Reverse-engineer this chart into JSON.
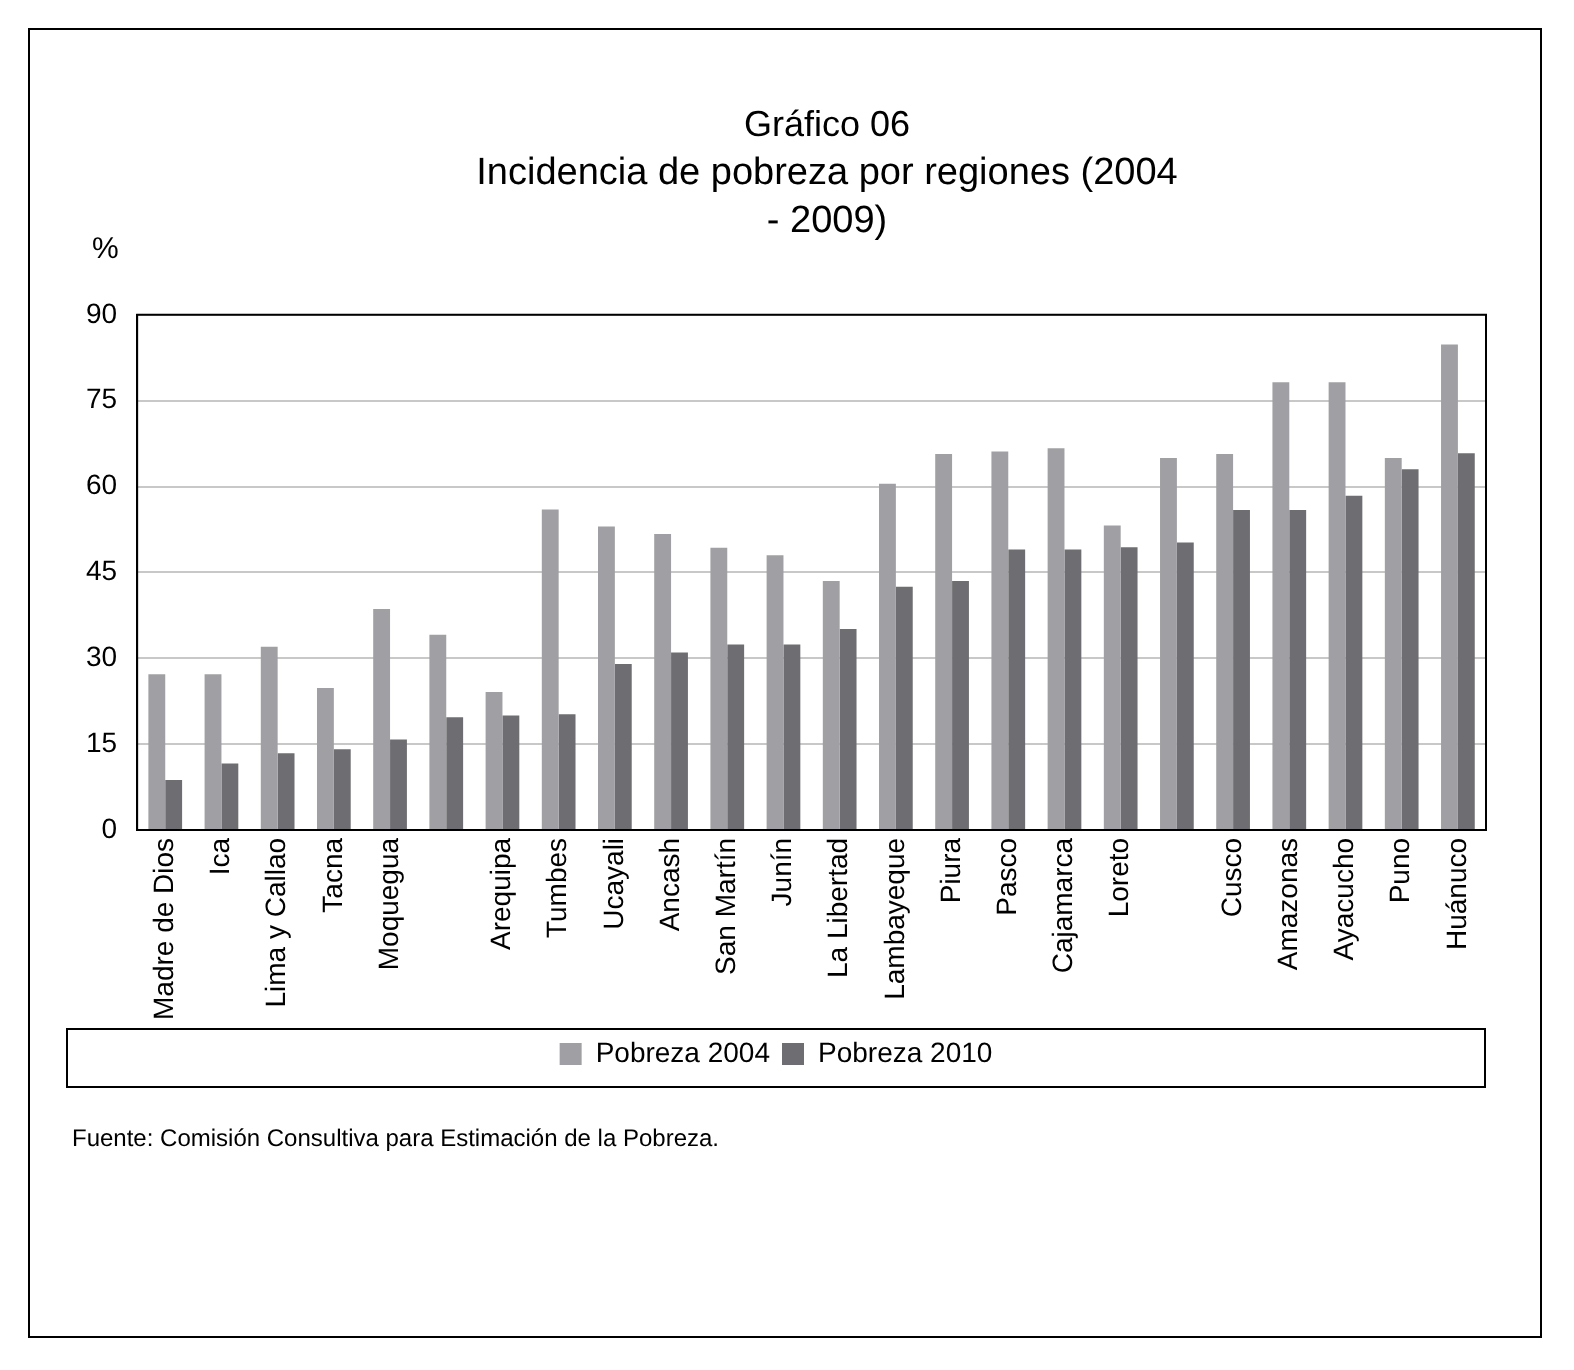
{
  "chart_data": {
    "type": "bar",
    "title": "Gráfico 06",
    "subtitle": "Incidencia de pobreza por regiones (2004 - 2009)",
    "ylabel": "%",
    "annotations": [
      "Fuente: Comisión Consultiva para Estimación de la Pobreza."
    ],
    "categories": [
      "Madre de Dios",
      "Ica",
      "Lima y Callao",
      "Tacna",
      "Moquegua",
      null,
      "Arequipa",
      "Tumbes",
      "Ucayali",
      "Ancash",
      "San Martín",
      "Junín",
      "La Libertad",
      "Lambayeque",
      "Piura",
      "Pasco",
      "Cajamarca",
      "Loreto",
      null,
      "Cusco",
      "Amazonas",
      "Ayacucho",
      "Puno",
      "Huánuco"
    ],
    "series": [
      {
        "name": "Pobreza 2004",
        "color": "#a0a0a4",
        "values": [
          27.2,
          27.2,
          32.0,
          24.8,
          38.6,
          34.1,
          24.1,
          56.0,
          53.0,
          51.7,
          49.3,
          48.0,
          43.5,
          60.5,
          65.7,
          66.1,
          66.7,
          53.2,
          65.0,
          65.7,
          78.2,
          78.2,
          65.0,
          84.8
        ]
      },
      {
        "name": "Pobreza 2010",
        "color": "#6e6e72",
        "values": [
          8.7,
          11.6,
          13.4,
          14.1,
          15.8,
          19.7,
          20.0,
          20.2,
          29.0,
          31.0,
          32.4,
          32.4,
          35.1,
          42.5,
          43.5,
          49.0,
          49.0,
          49.4,
          50.2,
          55.9,
          55.9,
          58.4,
          63.0,
          65.8
        ]
      }
    ],
    "ylim": [
      0,
      90
    ],
    "yticks": [
      0,
      15,
      30,
      45,
      60,
      75,
      90
    ],
    "grid": "y",
    "legend": "bottom"
  }
}
